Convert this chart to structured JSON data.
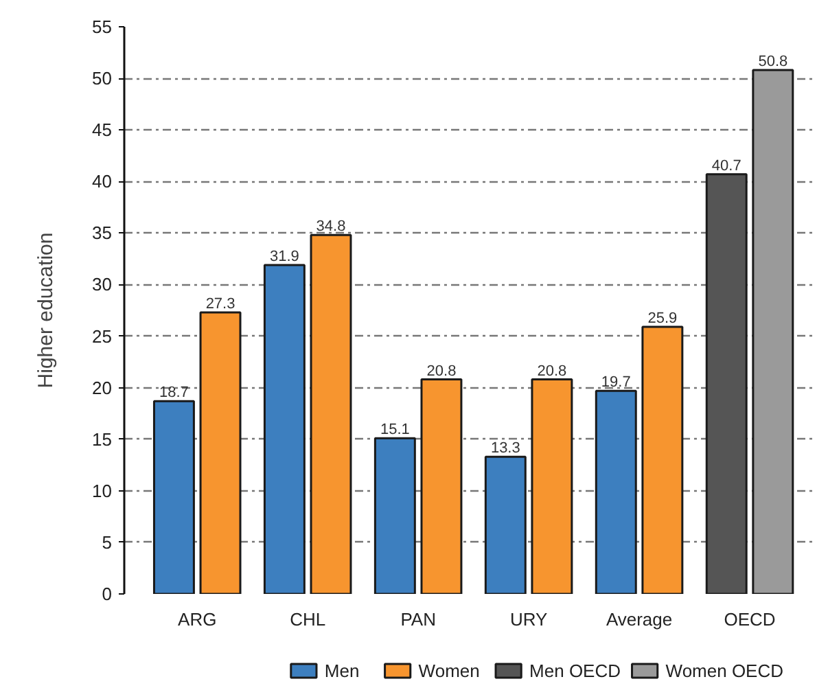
{
  "chart_data": {
    "type": "bar",
    "ylabel": "Higher education",
    "categories": [
      "ARG",
      "CHL",
      "PAN",
      "URY",
      "Average",
      "OECD"
    ],
    "series": [
      {
        "name": "Men",
        "color": "#3d7fbf",
        "values": [
          18.7,
          31.9,
          15.1,
          13.3,
          19.7,
          null
        ]
      },
      {
        "name": "Women",
        "color": "#f7952f",
        "values": [
          27.3,
          34.8,
          20.8,
          20.8,
          25.9,
          null
        ]
      },
      {
        "name": "Men OECD",
        "color": "#555555",
        "values": [
          null,
          null,
          null,
          null,
          null,
          40.7
        ]
      },
      {
        "name": "Women OECD",
        "color": "#9a9a9a",
        "values": [
          null,
          null,
          null,
          null,
          null,
          50.8
        ]
      }
    ],
    "ylim": [
      0,
      55
    ],
    "yticks": [
      0,
      5,
      10,
      15,
      20,
      25,
      30,
      35,
      40,
      45,
      50,
      55
    ],
    "grid": "y",
    "legend": "bottom",
    "data_labels": true
  }
}
